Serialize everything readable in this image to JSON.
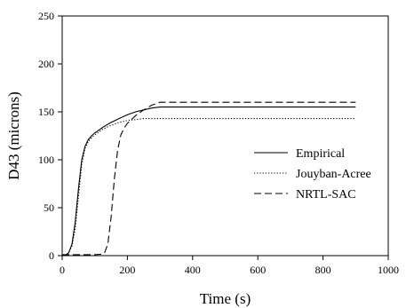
{
  "chart_data": {
    "type": "line",
    "title": "",
    "xlabel": "Time (s)",
    "ylabel": "D43 (microns)",
    "xlim": [
      0,
      1000
    ],
    "ylim": [
      0,
      250
    ],
    "xticks": [
      "0",
      "200",
      "400",
      "600",
      "800",
      "1000"
    ],
    "yticks": [
      "0",
      "50",
      "100",
      "150",
      "200",
      "250"
    ],
    "grid": false,
    "legend_position": "right",
    "series": [
      {
        "name": "Empirical",
        "style": "solid",
        "color": "#000000",
        "x": [
          0,
          10,
          20,
          30,
          40,
          50,
          60,
          70,
          80,
          90,
          100,
          125,
          150,
          175,
          200,
          225,
          250,
          275,
          300,
          350,
          400,
          500,
          600,
          700,
          800,
          900
        ],
        "y": [
          0,
          0.5,
          3,
          12,
          35,
          70,
          100,
          114,
          121,
          125,
          128,
          134,
          139,
          143,
          147,
          150,
          152,
          154,
          155,
          155,
          155,
          155,
          155,
          155,
          155,
          155
        ]
      },
      {
        "name": "Jouyban-Acree",
        "style": "dotted",
        "color": "#000000",
        "x": [
          0,
          10,
          20,
          30,
          40,
          50,
          60,
          70,
          80,
          90,
          100,
          125,
          150,
          175,
          200,
          225,
          250,
          300,
          400,
          500,
          600,
          700,
          800,
          900
        ],
        "y": [
          0,
          0.5,
          3,
          10,
          28,
          62,
          95,
          112,
          119,
          123,
          126,
          132,
          136,
          139,
          141,
          142,
          143,
          143,
          143,
          143,
          143,
          143,
          143,
          143
        ]
      },
      {
        "name": "NRTL-SAC",
        "style": "dashed",
        "color": "#000000",
        "x": [
          0,
          100,
          120,
          130,
          140,
          150,
          160,
          170,
          180,
          190,
          200,
          225,
          250,
          275,
          300,
          350,
          400,
          500,
          600,
          700,
          800,
          900
        ],
        "y": [
          1,
          1,
          1.5,
          3,
          12,
          40,
          80,
          110,
          126,
          133,
          138,
          146,
          152,
          157,
          160,
          160,
          160,
          160,
          160,
          160,
          160,
          160
        ]
      }
    ]
  }
}
